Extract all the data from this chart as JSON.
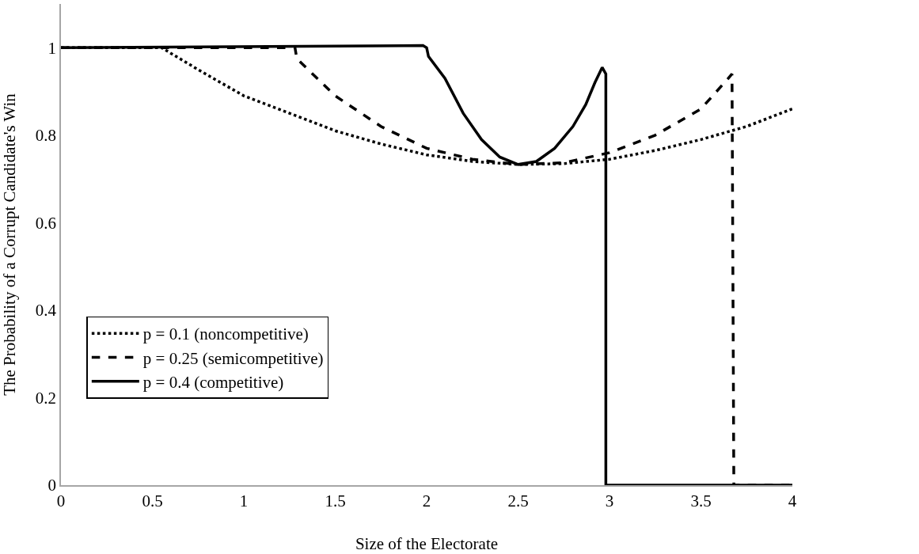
{
  "chart_data": {
    "type": "line",
    "xlabel": "Size of the Electorate",
    "ylabel": "The Probability of a Corrupt Candidate's Win",
    "xlim": [
      0,
      4
    ],
    "xticks": [
      0,
      0.5,
      1,
      1.5,
      2,
      2.5,
      3,
      3.5,
      4
    ],
    "ylim": [
      0,
      1.1
    ],
    "yticks": [
      0,
      0.2,
      0.4,
      0.6,
      0.8,
      1
    ],
    "legend": "bottom left",
    "marker": "none",
    "series": [
      {
        "name": "p = 0.1 (noncompetitive)",
        "color": "#000000",
        "line_style": "dotted",
        "x": [
          0,
          0.55,
          0.75,
          1.0,
          1.25,
          1.5,
          1.75,
          2.0,
          2.25,
          2.5,
          2.75,
          3.0,
          3.25,
          3.5,
          3.75,
          4.0
        ],
        "values": [
          1,
          1,
          0.95,
          0.89,
          0.85,
          0.81,
          0.78,
          0.755,
          0.74,
          0.733,
          0.735,
          0.745,
          0.765,
          0.79,
          0.82,
          0.86
        ]
      },
      {
        "name": "p = 0.25 (semicompetitive)",
        "color": "#000000",
        "line_style": "dashed",
        "x": [
          0,
          1.28,
          1.29,
          1.5,
          1.75,
          2.0,
          2.25,
          2.5,
          2.75,
          3.0,
          3.25,
          3.5,
          3.65,
          3.67,
          3.68,
          4.0
        ],
        "values": [
          1,
          1,
          0.975,
          0.89,
          0.82,
          0.77,
          0.745,
          0.733,
          0.737,
          0.76,
          0.8,
          0.86,
          0.93,
          0.94,
          0,
          0
        ]
      },
      {
        "name": "p = 0.4 (competitive)",
        "color": "#000000",
        "line_style": "solid",
        "x": [
          0,
          1.98,
          2.0,
          2.01,
          2.1,
          2.2,
          2.3,
          2.4,
          2.5,
          2.6,
          2.7,
          2.8,
          2.87,
          2.92,
          2.96,
          2.98,
          2.98,
          4.0
        ],
        "values": [
          1,
          1.005,
          1.0,
          0.98,
          0.93,
          0.85,
          0.79,
          0.75,
          0.733,
          0.74,
          0.77,
          0.82,
          0.87,
          0.92,
          0.955,
          0.94,
          0,
          0
        ]
      }
    ]
  }
}
